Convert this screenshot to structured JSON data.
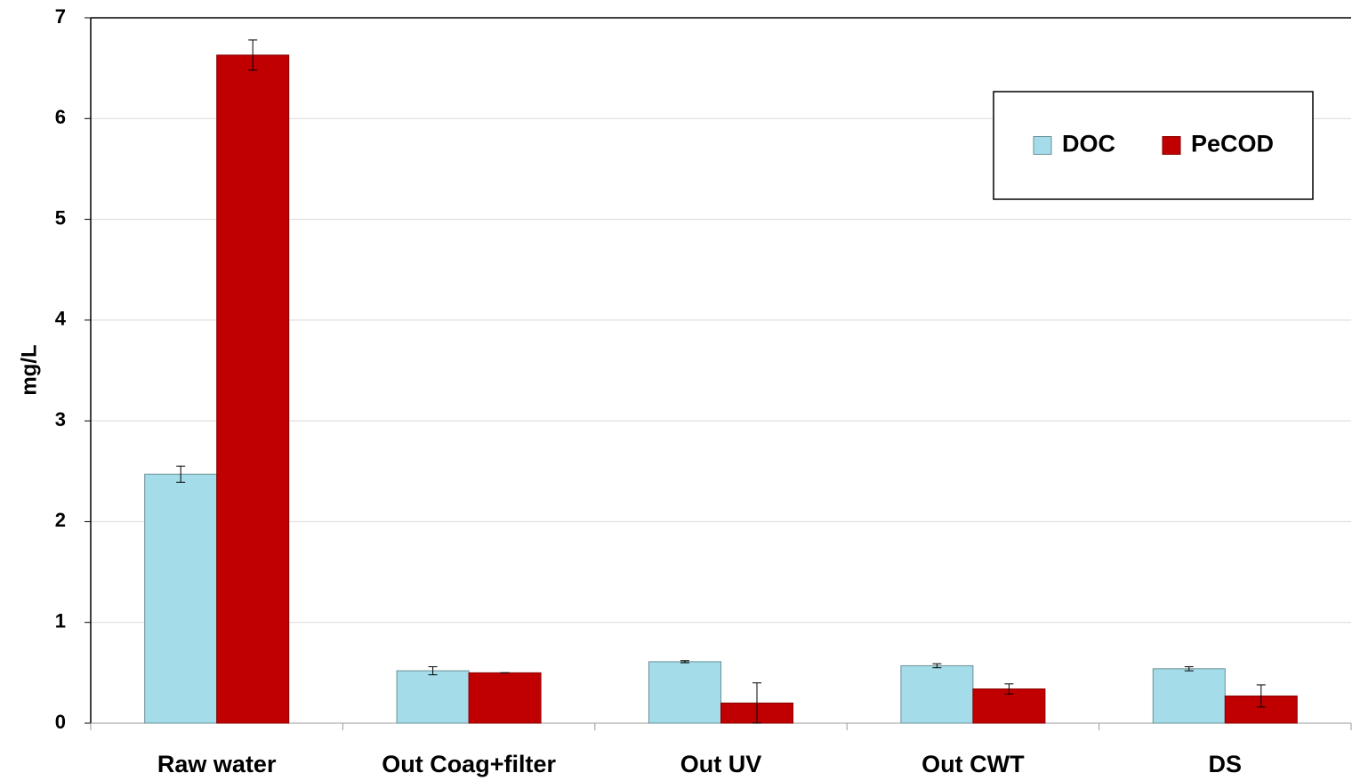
{
  "chart_data": {
    "type": "bar",
    "y_label": "mg/L",
    "categories": [
      "Raw water",
      "Out Coag+filter",
      "Out UV",
      "Out CWT",
      "DS"
    ],
    "series": [
      {
        "name": "DOC",
        "color": "#a4dde9",
        "values": [
          2.47,
          0.52,
          0.61,
          0.57,
          0.54
        ],
        "errors": [
          0.08,
          0.04,
          0.01,
          0.02,
          0.02
        ]
      },
      {
        "name": "PeCOD",
        "color": "#c00000",
        "values": [
          6.63,
          0.5,
          0.2,
          0.34,
          0.27
        ],
        "errors": [
          0.15,
          0.0,
          0.2,
          0.05,
          0.11
        ]
      }
    ],
    "ylim": [
      0,
      7
    ],
    "yticks": [
      0,
      1,
      2,
      3,
      4,
      5,
      6,
      7
    ],
    "grid": true,
    "legend": "upper right"
  }
}
